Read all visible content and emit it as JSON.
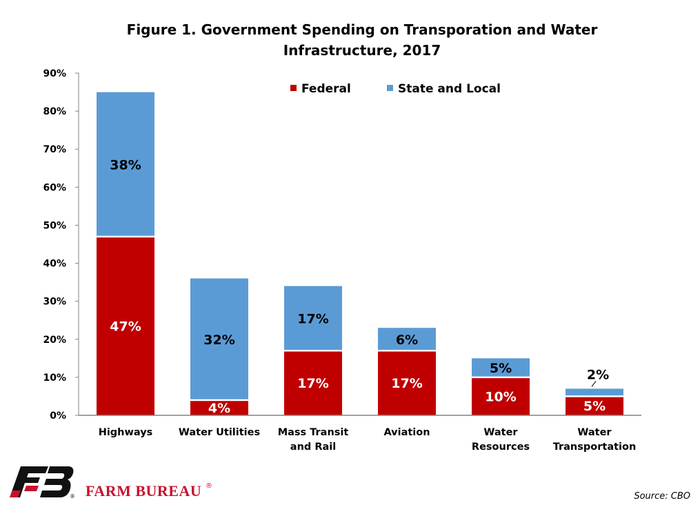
{
  "chart_data": {
    "type": "bar",
    "stacked": true,
    "title": "Figure 1. Government Spending on Transporation and Water Infrastructure, 2017",
    "title_lines": [
      "Figure 1. Government Spending on Transporation and Water",
      "Infrastructure, 2017"
    ],
    "categories": [
      "Highways",
      "Water Utilities",
      "Mass Transit and Rail",
      "Aviation",
      "Water Resources",
      "Water Transportation"
    ],
    "category_lines": [
      [
        "Highways"
      ],
      [
        "Water Utilities"
      ],
      [
        "Mass Transit",
        "and Rail"
      ],
      [
        "Aviation"
      ],
      [
        "Water",
        "Resources"
      ],
      [
        "Water",
        "Transportation"
      ]
    ],
    "series": [
      {
        "name": "Federal",
        "values": [
          47,
          4,
          17,
          17,
          10,
          5
        ],
        "labels": [
          "47%",
          "4%",
          "17%",
          "17%",
          "10%",
          "5%"
        ],
        "color": "#c00000",
        "label_color": "#ffffff"
      },
      {
        "name": "State and Local",
        "values": [
          38,
          32,
          17,
          6,
          5,
          2
        ],
        "labels": [
          "38%",
          "32%",
          "17%",
          "6%",
          "5%",
          "2%"
        ],
        "color": "#5b9bd5",
        "label_color": "#000000"
      }
    ],
    "ylim": [
      0,
      90
    ],
    "yticks": [
      0,
      10,
      20,
      30,
      40,
      50,
      60,
      70,
      80,
      90
    ],
    "ytick_labels": [
      "0%",
      "10%",
      "20%",
      "30%",
      "40%",
      "50%",
      "60%",
      "70%",
      "80%",
      "90%"
    ],
    "xlabel": "",
    "ylabel": "",
    "grid": false,
    "legend_position": "top-right"
  },
  "branding": {
    "name": "FARM BUREAU",
    "registered": "®",
    "colors": {
      "red": "#c8102e",
      "black": "#111111"
    }
  },
  "source": "Source: CBO"
}
